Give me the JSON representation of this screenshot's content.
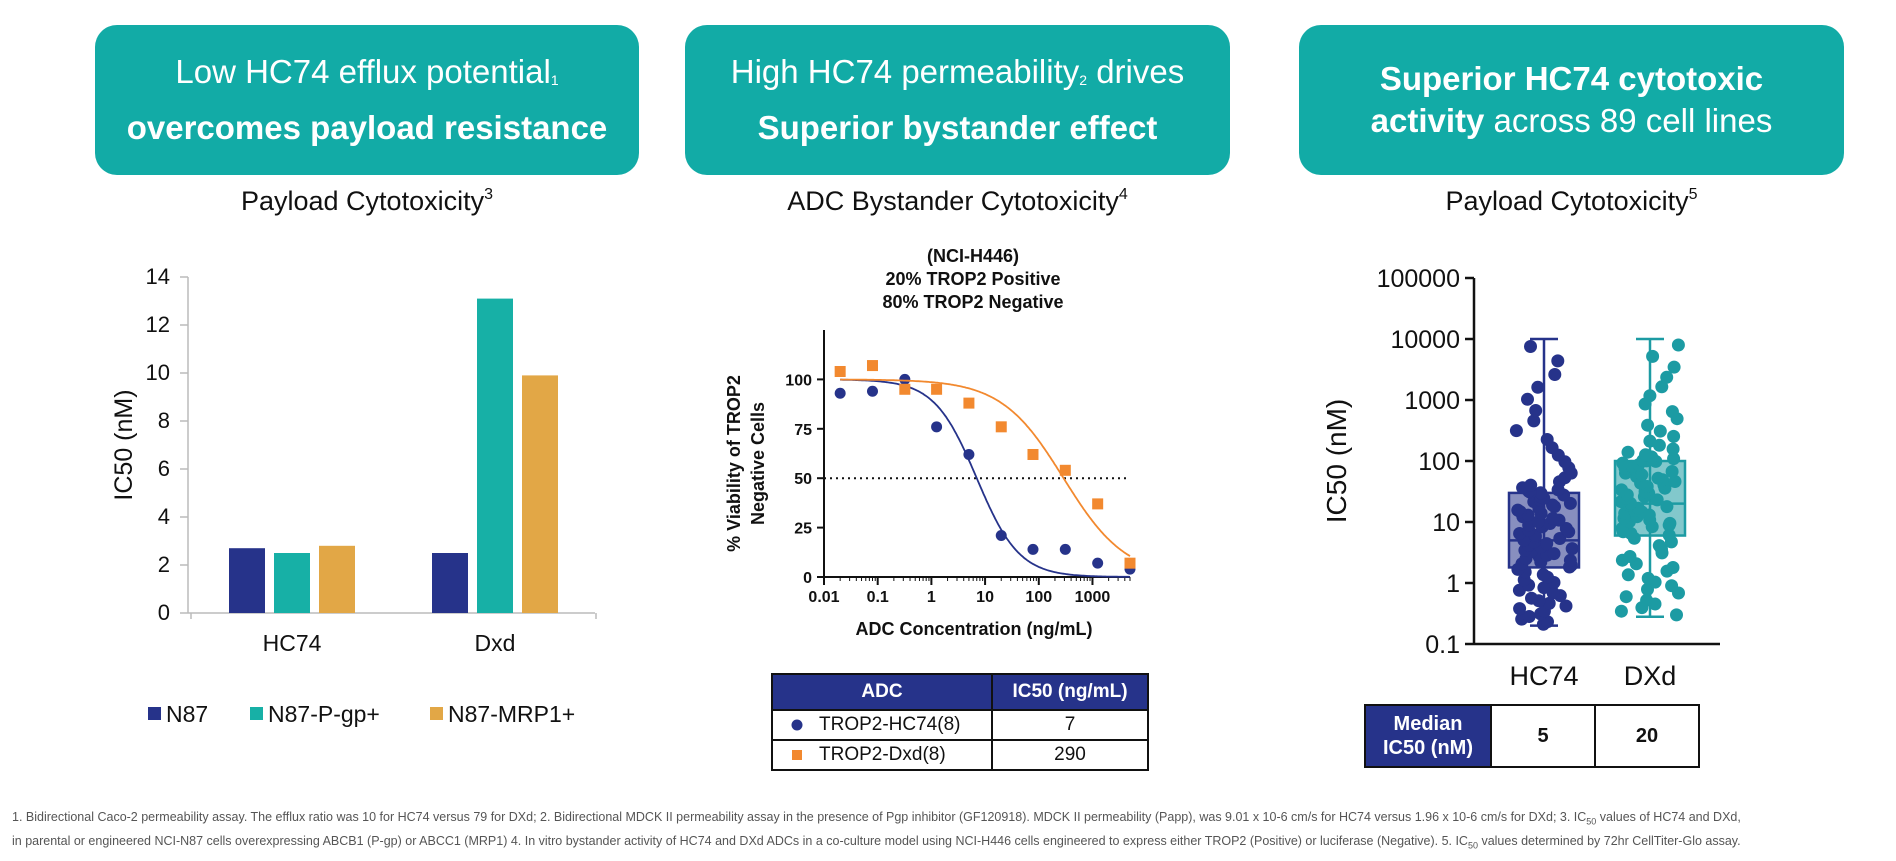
{
  "banners": [
    {
      "line1": "Low HC74 efflux potential",
      "line1_sup": "1",
      "line2": "overcomes payload resistance"
    },
    {
      "line1": "High HC74 permeability",
      "line1_sup": "2",
      "line1_tail": " drives",
      "line2": "Superior bystander effect"
    },
    {
      "bold1": "Superior HC74 cytotoxic",
      "bold2": "activity",
      "tail2": " across 89 cell lines"
    }
  ],
  "panel_titles": [
    {
      "text": "Payload Cytotoxicity",
      "sup": "3"
    },
    {
      "text": "ADC Bystander Cytotoxicity",
      "sup": "4"
    },
    {
      "text": "Payload Cytotoxicity",
      "sup": "5"
    }
  ],
  "colors": {
    "teal_banner": "#12ABA6",
    "navy": "#26338A",
    "teal": "#17B0A6",
    "gold": "#E2A746",
    "orange": "#F2892F",
    "box_teal": "#1C9BA3"
  },
  "chart_data": [
    {
      "type": "bar",
      "title": "Payload Cytotoxicity",
      "ylabel": "IC50 (nM)",
      "xlabel": "",
      "categories": [
        "HC74",
        "Dxd"
      ],
      "ylim": [
        0,
        14
      ],
      "yticks": [
        "0",
        "2",
        "4",
        "6",
        "8",
        "10",
        "12",
        "14"
      ],
      "series": [
        {
          "name": "N87",
          "color": "#26338A",
          "values": [
            2.7,
            2.5
          ]
        },
        {
          "name": "N87-P-gp+",
          "color": "#17B0A6",
          "values": [
            2.5,
            13.1
          ]
        },
        {
          "name": "N87-MRP1+",
          "color": "#E2A746",
          "values": [
            2.8,
            9.9
          ]
        }
      ],
      "legend": "bottom"
    },
    {
      "type": "scatter",
      "title": "ADC Bystander Cytotoxicity",
      "subtitle": [
        "(NCI-H446)",
        "20% TROP2 Positive",
        "80% TROP2 Negative"
      ],
      "xlabel": "ADC Concentration (ng/mL)",
      "ylabel": [
        "% Viability of TROP2",
        "Negative Cells"
      ],
      "xscale": "log",
      "xlim": [
        0.01,
        5000
      ],
      "ylim": [
        0,
        125
      ],
      "xticks": [
        "0.01",
        "0.1",
        "1",
        "10",
        "100",
        "1000"
      ],
      "yticks": [
        "0",
        "25",
        "50",
        "75",
        "100"
      ],
      "reference_line": 50,
      "series": [
        {
          "name": "TROP2-HC74(8)",
          "color": "#26338A",
          "marker": "circle",
          "x": [
            0.02,
            0.08,
            0.32,
            1.25,
            5,
            20,
            78,
            312,
            1250,
            5000
          ],
          "y": [
            93,
            94,
            100,
            76,
            62,
            21,
            14,
            14,
            7,
            4
          ],
          "fit_ic50": 7,
          "fit_top": 100,
          "fit_hill": 1.1
        },
        {
          "name": "TROP2-Dxd(8)",
          "color": "#F2892F",
          "marker": "square",
          "x": [
            0.02,
            0.08,
            0.32,
            1.25,
            5,
            20,
            78,
            312,
            1250,
            5000
          ],
          "y": [
            104,
            107,
            95,
            95,
            88,
            76,
            62,
            54,
            37,
            7
          ],
          "fit_ic50": 290,
          "fit_top": 100,
          "fit_hill": 0.75
        }
      ]
    },
    {
      "type": "box",
      "title": "Payload Cytotoxicity",
      "ylabel": "IC50 (nM)",
      "yscale": "log",
      "ylim": [
        0.1,
        100000
      ],
      "yticks": [
        "0.1",
        "1",
        "10",
        "100",
        "1000",
        "10000",
        "100000"
      ],
      "categories": [
        "HC74",
        "DXd"
      ],
      "boxes": [
        {
          "name": "HC74",
          "color": "#26338A",
          "min": 0.2,
          "q1": 1.8,
          "median": 5,
          "q3": 30,
          "max": 10000
        },
        {
          "name": "DXd",
          "color": "#1C9BA3",
          "min": 0.28,
          "q1": 6,
          "median": 20,
          "q3": 100,
          "max": 10000
        }
      ]
    }
  ],
  "bystander_table": {
    "headers": [
      "ADC",
      "IC50 (ng/mL)"
    ],
    "rows": [
      {
        "name": "TROP2-HC74(8)",
        "value": "7"
      },
      {
        "name": "TROP2-Dxd(8)",
        "value": "290"
      }
    ]
  },
  "median_table": {
    "label_line1": "Median",
    "label_line2": "IC50 (nM)",
    "values": [
      "5",
      "20"
    ]
  },
  "footnote": {
    "line1a": "1. Bidirectional Caco-2 permeability assay. The efflux ratio was 10 for HC74 versus 79 for DXd; 2. Bidirectional MDCK II permeability assay in the presence of Pgp inhibitor (GF120918). MDCK II permeability (Papp), was 9.01 x 10-6 cm/s for HC74 versus 1.96 x 10-6 cm/s for DXd; 3. IC",
    "sub": "50",
    "line1b": " values of HC74 and DXd,",
    "line2a": "in parental or engineered NCI-N87 cells overexpressing ABCB1 (P-gp) or ABCC1 (MRP1) 4. In vitro bystander activity of HC74 and DXd ADCs in a co-culture model using NCI-H446 cells engineered to express either TROP2 (Positive) or luciferase (Negative). 5. IC",
    "sub2": "50",
    "line2b": " values determined by 72hr CellTiter-Glo assay."
  }
}
